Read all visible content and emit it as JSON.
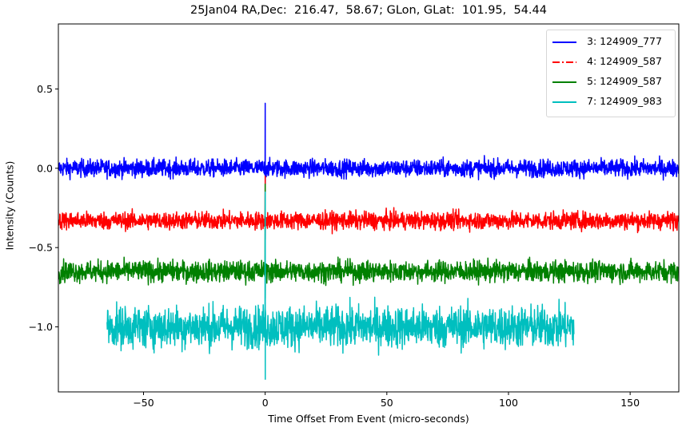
{
  "chart_data": {
    "type": "line",
    "title": "25Jan04 RA,Dec:  216.47,  58.67; GLon, GLat:  101.95,  54.44",
    "xlabel": "Time Offset From Event (micro-seconds)",
    "ylabel": "Intensity (Counts)",
    "xlim": [
      -85,
      170
    ],
    "ylim": [
      -1.41,
      0.91
    ],
    "xticks": [
      -50,
      0,
      50,
      100,
      150
    ],
    "xtick_labels": [
      "−50",
      "0",
      "50",
      "100",
      "150"
    ],
    "yticks": [
      0.5,
      0.0,
      -0.5,
      -1.0
    ],
    "ytick_labels": [
      "0.5",
      "0.0",
      "−0.5",
      "−1.0"
    ],
    "grid": false,
    "legend_position": "upper right",
    "series": [
      {
        "name": "3: 124909_777",
        "color": "#0000ff",
        "linestyle": "solid",
        "x_range": [
          -85,
          170
        ],
        "baseline": 0.0,
        "noise_amplitude": 0.05,
        "spike": {
          "x": 0,
          "peak": 0.41,
          "trough": -0.1
        }
      },
      {
        "name": "4: 124909_587",
        "color": "#ff0000",
        "linestyle": "dashdot",
        "x_range": [
          -85,
          170
        ],
        "baseline": -0.33,
        "noise_amplitude": 0.05,
        "spike": {
          "x": 0,
          "peak": -0.05,
          "trough": -0.45
        }
      },
      {
        "name": "5: 124909_587",
        "color": "#008000",
        "linestyle": "solid",
        "x_range": [
          -85,
          170
        ],
        "baseline": -0.65,
        "noise_amplitude": 0.06,
        "spike": {
          "x": 0,
          "peak": -0.1,
          "trough": -0.82
        }
      },
      {
        "name": "7: 124909_983",
        "color": "#00bfbf",
        "linestyle": "solid",
        "x_range": [
          -65,
          127
        ],
        "baseline": -1.0,
        "noise_amplitude": 0.12,
        "spike": {
          "x": 0,
          "peak": -0.15,
          "trough": -1.33
        }
      }
    ]
  },
  "legend": {
    "items": [
      {
        "label": "3: 124909_777"
      },
      {
        "label": "4: 124909_587"
      },
      {
        "label": "5: 124909_587"
      },
      {
        "label": "7: 124909_983"
      }
    ]
  }
}
